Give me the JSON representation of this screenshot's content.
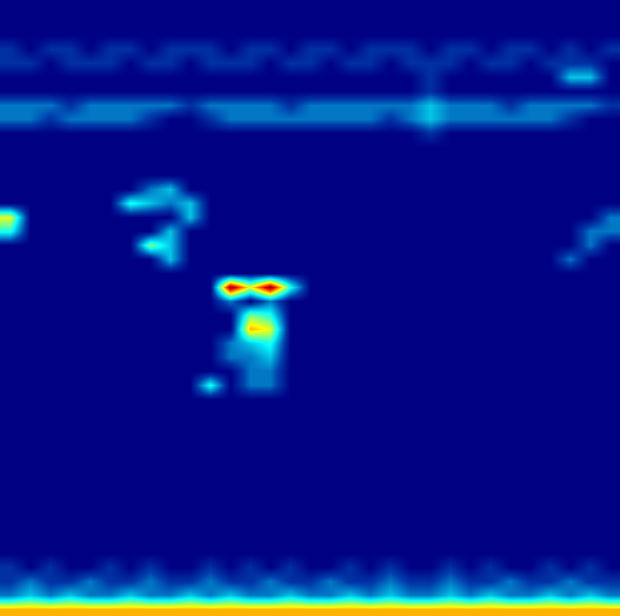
{
  "chart_data": {
    "type": "heatmap",
    "color": "Jet",
    "zlim": [
      0,
      10
    ],
    "tick_labels": false,
    "grid": false,
    "cells": [
      [
        0,
        0,
        0,
        0,
        0,
        0,
        0,
        0,
        0,
        0,
        0,
        0,
        0,
        0,
        0,
        0,
        0,
        0,
        0,
        0,
        0,
        0,
        0,
        0,
        0,
        0,
        0,
        0,
        0,
        0,
        0
      ],
      [
        0,
        0,
        0,
        0,
        0,
        0,
        0,
        0,
        0,
        0,
        0,
        0,
        0,
        0,
        0,
        0,
        0,
        0,
        0,
        0,
        0,
        0,
        0,
        0,
        0,
        0,
        0,
        0,
        0,
        0,
        0
      ],
      [
        0,
        0,
        0,
        0,
        0,
        0,
        0,
        0,
        0,
        0,
        0,
        0,
        0,
        0,
        0,
        0,
        0,
        0,
        0,
        0,
        0,
        0,
        0,
        0,
        0,
        0,
        0,
        0,
        0,
        0,
        0
      ],
      [
        1,
        0,
        1,
        1,
        0,
        1,
        1,
        0,
        1,
        1,
        1,
        0,
        1,
        1,
        0,
        1,
        1,
        0,
        1,
        1,
        1,
        0,
        1,
        1,
        0,
        1,
        1,
        0,
        1,
        0,
        1
      ],
      [
        1,
        1,
        0,
        1,
        1,
        1,
        0,
        1,
        1,
        0,
        1,
        1,
        1,
        0,
        1,
        1,
        0,
        1,
        1,
        0,
        1,
        1,
        1,
        0,
        1,
        1,
        0,
        1,
        1,
        1,
        0
      ],
      [
        0,
        0,
        0,
        0,
        0,
        0,
        0,
        0,
        0,
        0,
        0,
        0,
        0,
        0,
        0,
        0,
        0,
        0,
        0,
        0,
        0,
        1,
        0,
        0,
        0,
        0,
        0,
        0,
        3,
        3,
        0
      ],
      [
        0,
        0,
        0,
        0,
        0,
        0,
        0,
        0,
        0,
        0,
        0,
        0,
        0,
        0,
        0,
        0,
        0,
        0,
        0,
        0,
        0,
        1,
        0,
        0,
        0,
        0,
        0,
        0,
        0,
        0,
        0
      ],
      [
        2,
        2,
        2,
        1,
        2,
        2,
        2,
        2,
        2,
        1,
        2,
        2,
        2,
        2,
        1,
        2,
        2,
        2,
        2,
        2,
        2,
        3,
        2,
        2,
        2,
        1,
        2,
        2,
        2,
        2,
        1
      ],
      [
        2,
        2,
        1,
        2,
        2,
        2,
        2,
        1,
        0,
        0,
        1,
        2,
        2,
        2,
        2,
        2,
        2,
        2,
        2,
        1,
        2,
        3,
        2,
        2,
        2,
        2,
        2,
        2,
        1,
        0,
        0
      ],
      [
        0,
        0,
        0,
        0,
        0,
        0,
        0,
        0,
        0,
        0,
        0,
        0,
        0,
        0,
        0,
        0,
        0,
        0,
        0,
        0,
        0,
        1,
        0,
        0,
        0,
        0,
        0,
        0,
        0,
        0,
        0
      ],
      [
        0,
        0,
        0,
        0,
        0,
        0,
        0,
        0,
        0,
        0,
        0,
        0,
        0,
        0,
        0,
        0,
        0,
        0,
        0,
        0,
        0,
        0,
        0,
        0,
        0,
        0,
        0,
        0,
        0,
        0,
        0
      ],
      [
        0,
        0,
        0,
        0,
        0,
        0,
        0,
        0,
        0,
        0,
        0,
        0,
        0,
        0,
        0,
        0,
        0,
        0,
        0,
        0,
        0,
        0,
        0,
        0,
        0,
        0,
        0,
        0,
        0,
        0,
        0
      ],
      [
        0,
        0,
        0,
        0,
        0,
        0,
        0,
        0,
        0,
        0,
        0,
        0,
        0,
        0,
        0,
        0,
        0,
        0,
        0,
        0,
        0,
        0,
        0,
        0,
        0,
        0,
        0,
        0,
        0,
        0,
        0
      ],
      [
        0,
        0,
        0,
        0,
        0,
        0,
        0,
        2,
        3,
        0,
        0,
        0,
        0,
        0,
        0,
        0,
        0,
        0,
        0,
        0,
        0,
        0,
        0,
        0,
        0,
        0,
        0,
        0,
        0,
        0,
        0
      ],
      [
        0,
        0,
        0,
        0,
        0,
        0,
        4,
        3,
        2,
        3,
        0,
        0,
        0,
        0,
        0,
        0,
        0,
        0,
        0,
        0,
        0,
        0,
        0,
        0,
        0,
        0,
        0,
        0,
        0,
        0,
        0
      ],
      [
        6,
        0,
        0,
        0,
        0,
        0,
        0,
        0,
        0,
        3,
        0,
        0,
        0,
        0,
        0,
        0,
        0,
        0,
        0,
        0,
        0,
        0,
        0,
        0,
        0,
        0,
        0,
        0,
        0,
        0,
        2
      ],
      [
        4,
        0,
        0,
        0,
        0,
        0,
        0,
        0,
        3,
        0,
        0,
        0,
        0,
        0,
        0,
        0,
        0,
        0,
        0,
        0,
        0,
        0,
        0,
        0,
        0,
        0,
        0,
        0,
        0,
        2,
        2
      ],
      [
        0,
        0,
        0,
        0,
        0,
        0,
        0,
        5,
        3,
        0,
        0,
        0,
        0,
        0,
        0,
        0,
        0,
        0,
        0,
        0,
        0,
        0,
        0,
        0,
        0,
        0,
        0,
        0,
        0,
        2,
        0
      ],
      [
        0,
        0,
        0,
        0,
        0,
        0,
        0,
        0,
        3,
        0,
        0,
        0,
        0,
        0,
        0,
        0,
        0,
        0,
        0,
        0,
        0,
        0,
        0,
        0,
        0,
        0,
        0,
        0,
        2,
        0,
        0
      ],
      [
        0,
        0,
        0,
        0,
        0,
        0,
        0,
        0,
        0,
        0,
        0,
        0,
        0,
        0,
        0,
        0,
        0,
        0,
        0,
        0,
        0,
        0,
        0,
        0,
        0,
        0,
        0,
        0,
        0,
        0,
        0
      ],
      [
        0,
        0,
        0,
        0,
        0,
        0,
        0,
        0,
        0,
        0,
        0,
        10,
        6,
        10,
        4,
        0,
        0,
        0,
        0,
        0,
        0,
        0,
        0,
        0,
        0,
        0,
        0,
        0,
        0,
        0,
        0
      ],
      [
        0,
        0,
        0,
        0,
        0,
        0,
        0,
        0,
        0,
        0,
        0,
        2,
        0,
        2,
        0,
        0,
        0,
        0,
        0,
        0,
        0,
        0,
        0,
        0,
        0,
        0,
        0,
        0,
        0,
        0,
        0
      ],
      [
        0,
        0,
        0,
        0,
        0,
        0,
        0,
        0,
        0,
        0,
        0,
        0,
        5,
        4,
        0,
        0,
        0,
        0,
        0,
        0,
        0,
        0,
        0,
        0,
        0,
        0,
        0,
        0,
        0,
        0,
        0
      ],
      [
        0,
        0,
        0,
        0,
        0,
        0,
        0,
        0,
        0,
        0,
        0,
        0,
        7,
        6,
        0,
        0,
        0,
        0,
        0,
        0,
        0,
        0,
        0,
        0,
        0,
        0,
        0,
        0,
        0,
        0,
        0
      ],
      [
        0,
        0,
        0,
        0,
        0,
        0,
        0,
        0,
        0,
        0,
        0,
        2,
        3,
        4,
        0,
        0,
        0,
        0,
        0,
        0,
        0,
        0,
        0,
        0,
        0,
        0,
        0,
        0,
        0,
        0,
        0
      ],
      [
        0,
        0,
        0,
        0,
        0,
        0,
        0,
        0,
        0,
        0,
        0,
        2,
        2,
        3,
        0,
        0,
        0,
        0,
        0,
        0,
        0,
        0,
        0,
        0,
        0,
        0,
        0,
        0,
        0,
        0,
        0
      ],
      [
        0,
        0,
        0,
        0,
        0,
        0,
        0,
        0,
        0,
        0,
        0,
        0,
        2,
        2,
        0,
        0,
        0,
        0,
        0,
        0,
        0,
        0,
        0,
        0,
        0,
        0,
        0,
        0,
        0,
        0,
        0
      ],
      [
        0,
        0,
        0,
        0,
        0,
        0,
        0,
        0,
        0,
        0,
        4,
        0,
        2,
        2,
        0,
        0,
        0,
        0,
        0,
        0,
        0,
        0,
        0,
        0,
        0,
        0,
        0,
        0,
        0,
        0,
        0
      ],
      [
        0,
        0,
        0,
        0,
        0,
        0,
        0,
        0,
        0,
        0,
        0,
        0,
        0,
        0,
        0,
        0,
        0,
        0,
        0,
        0,
        0,
        0,
        0,
        0,
        0,
        0,
        0,
        0,
        0,
        0,
        0
      ],
      [
        0,
        0,
        0,
        0,
        0,
        0,
        0,
        0,
        0,
        0,
        0,
        0,
        0,
        0,
        0,
        0,
        0,
        0,
        0,
        0,
        0,
        0,
        0,
        0,
        0,
        0,
        0,
        0,
        0,
        0,
        0
      ],
      [
        0,
        0,
        0,
        0,
        0,
        0,
        0,
        0,
        0,
        0,
        0,
        0,
        0,
        0,
        0,
        0,
        0,
        0,
        0,
        0,
        0,
        0,
        0,
        0,
        0,
        0,
        0,
        0,
        0,
        0,
        0
      ],
      [
        0,
        0,
        0,
        0,
        0,
        0,
        0,
        0,
        0,
        0,
        0,
        0,
        0,
        0,
        0,
        0,
        0,
        0,
        0,
        0,
        0,
        0,
        0,
        0,
        0,
        0,
        0,
        0,
        0,
        0,
        0
      ],
      [
        0,
        0,
        0,
        0,
        0,
        0,
        0,
        0,
        0,
        0,
        0,
        0,
        0,
        0,
        0,
        0,
        0,
        0,
        0,
        0,
        0,
        0,
        0,
        0,
        0,
        0,
        0,
        0,
        0,
        0,
        0
      ],
      [
        0,
        0,
        0,
        0,
        0,
        0,
        0,
        0,
        0,
        0,
        0,
        0,
        0,
        0,
        0,
        0,
        0,
        0,
        0,
        0,
        0,
        0,
        0,
        0,
        0,
        0,
        0,
        0,
        0,
        0,
        0
      ],
      [
        0,
        0,
        0,
        0,
        0,
        0,
        0,
        0,
        0,
        0,
        0,
        0,
        0,
        0,
        0,
        0,
        0,
        0,
        0,
        0,
        0,
        0,
        0,
        0,
        0,
        0,
        0,
        0,
        0,
        0,
        0
      ],
      [
        0,
        0,
        0,
        0,
        0,
        0,
        0,
        0,
        0,
        0,
        0,
        0,
        0,
        0,
        0,
        0,
        0,
        0,
        0,
        0,
        0,
        0,
        0,
        0,
        0,
        0,
        0,
        0,
        0,
        0,
        0
      ],
      [
        0,
        0,
        0,
        0,
        0,
        0,
        0,
        0,
        0,
        0,
        0,
        0,
        0,
        0,
        0,
        0,
        0,
        0,
        0,
        0,
        0,
        0,
        0,
        0,
        0,
        0,
        0,
        0,
        0,
        0,
        0
      ],
      [
        0,
        0,
        0,
        0,
        0,
        0,
        0,
        0,
        0,
        0,
        0,
        0,
        0,
        0,
        0,
        0,
        0,
        0,
        0,
        0,
        0,
        0,
        0,
        0,
        0,
        0,
        0,
        0,
        0,
        0,
        0
      ],
      [
        0,
        0,
        0,
        0,
        0,
        0,
        0,
        0,
        0,
        0,
        0,
        0,
        0,
        0,
        0,
        0,
        0,
        0,
        0,
        0,
        0,
        0,
        0,
        0,
        0,
        0,
        0,
        0,
        0,
        0,
        0
      ],
      [
        0,
        0,
        0,
        0,
        0,
        0,
        0,
        0,
        0,
        0,
        0,
        0,
        0,
        0,
        0,
        0,
        0,
        0,
        0,
        0,
        0,
        0,
        0,
        0,
        0,
        0,
        0,
        0,
        0,
        0,
        0
      ],
      [
        1,
        0,
        1,
        0,
        0,
        1,
        0,
        1,
        0,
        0,
        1,
        0,
        1,
        0,
        1,
        0,
        0,
        1,
        0,
        1,
        0,
        0,
        1,
        0,
        1,
        0,
        0,
        1,
        0,
        1,
        0
      ],
      [
        1,
        2,
        1,
        1,
        2,
        1,
        1,
        2,
        1,
        1,
        2,
        1,
        1,
        2,
        1,
        1,
        2,
        1,
        1,
        2,
        1,
        1,
        2,
        1,
        1,
        2,
        1,
        1,
        2,
        1,
        1
      ],
      [
        2,
        3,
        2,
        3,
        2,
        2,
        3,
        2,
        2,
        3,
        2,
        3,
        2,
        2,
        3,
        2,
        2,
        3,
        2,
        3,
        2,
        2,
        3,
        2,
        3,
        2,
        2,
        3,
        2,
        3,
        2
      ],
      [
        7,
        7,
        7,
        7,
        7,
        7,
        7,
        7,
        7,
        7,
        7,
        7,
        7,
        7,
        7,
        7,
        7,
        7,
        7,
        7,
        7,
        7,
        7,
        7,
        7,
        7,
        7,
        7,
        7,
        7,
        7
      ]
    ]
  }
}
